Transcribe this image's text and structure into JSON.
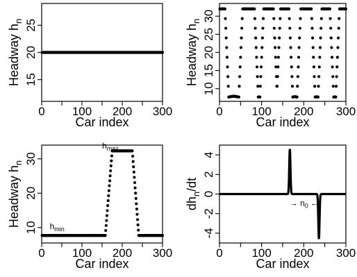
{
  "chart_data": [
    {
      "type": "scatter",
      "id": "panel-a",
      "xlabel": "Car index",
      "ylabel": "Headway h",
      "ylabel_sub": "n",
      "xlim": [
        0,
        300
      ],
      "ylim": [
        11,
        29
      ],
      "xticks": [
        0,
        100,
        200,
        300
      ],
      "yticks": [
        15,
        20,
        25
      ],
      "y_constant": 20,
      "n_points": 300,
      "annotations": []
    },
    {
      "type": "scatter",
      "id": "panel-b",
      "xlabel": "Car index",
      "ylabel": "Headway h",
      "ylabel_sub": "n",
      "xlim": [
        0,
        300
      ],
      "ylim": [
        6.5,
        33.5
      ],
      "xticks": [
        0,
        100,
        200,
        300
      ],
      "yticks": [
        10,
        15,
        20,
        25,
        30
      ],
      "h_min": 8,
      "h_max": 32,
      "high_plateaus": [
        [
          0,
          13
        ],
        [
          55,
          83
        ],
        [
          105,
          128
        ],
        [
          145,
          165
        ],
        [
          193,
          218
        ],
        [
          243,
          262
        ],
        [
          285,
          300
        ]
      ],
      "annotations": []
    },
    {
      "type": "scatter",
      "id": "panel-c",
      "xlabel": "Car index",
      "ylabel": "Headway h",
      "ylabel_sub": "n",
      "xlim": [
        0,
        300
      ],
      "ylim": [
        5.5,
        34
      ],
      "xticks": [
        0,
        100,
        200,
        300
      ],
      "yticks": [
        10,
        20,
        30
      ],
      "h_min": 7.7,
      "h_max": 32.3,
      "rise": [
        158,
        175
      ],
      "fall": [
        225,
        241
      ],
      "annotations": [
        {
          "text": "h",
          "sub": "max",
          "x": 150,
          "y": 33
        },
        {
          "text": "h",
          "sub": "min",
          "x": 20,
          "y": 9.5
        }
      ]
    },
    {
      "type": "line",
      "id": "panel-d",
      "xlabel": "Car index",
      "ylabel": "dh",
      "ylabel_sub": "n",
      "ylabel_tail": "/dt",
      "xlim": [
        0,
        300
      ],
      "ylim": [
        -5,
        5
      ],
      "xticks": [
        0,
        100,
        200,
        300
      ],
      "yticks": [
        -4,
        -2,
        0,
        2,
        4
      ],
      "spikes": [
        {
          "center": 167,
          "peak": 4.6,
          "width": 5
        },
        {
          "center": 236,
          "peak": -4.6,
          "width": 5
        }
      ],
      "annotation": {
        "text": "n",
        "sub": "0",
        "left_arrow": "→",
        "right_arrow": "←"
      }
    }
  ]
}
